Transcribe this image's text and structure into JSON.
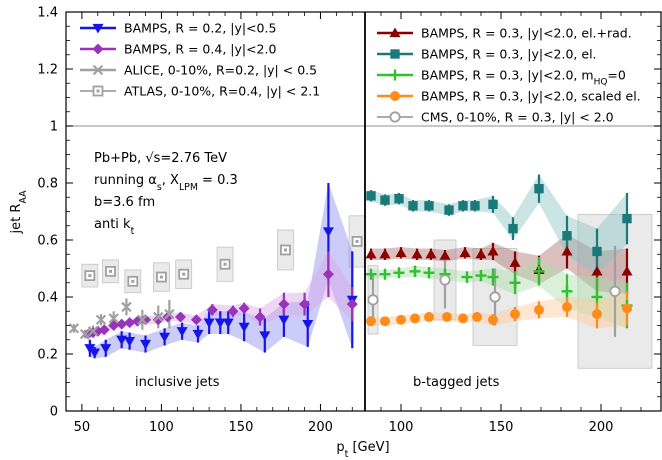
{
  "chart_data": [
    {
      "panel": "left",
      "type": "scatter",
      "annotation_label": "inclusive jets",
      "xlim": [
        40,
        228
      ],
      "ylim": [
        0,
        1.4
      ],
      "xticks": [
        50,
        100,
        150,
        200
      ],
      "yticks": [
        0,
        0.2,
        0.4,
        0.6,
        0.8,
        1,
        1.2,
        1.4
      ],
      "reference_line": 1,
      "annotations": [
        "Pb+Pb, √s=2.76 TeV",
        "running α_s, X_LPM = 0.3",
        "b=3.6 fm",
        "anti k_t"
      ],
      "series": [
        {
          "name": "BAMPS, R = 0.2, |y|<0.5",
          "marker": "triangle-down",
          "color": "#1515e8",
          "band_color": "#8f8ff0",
          "x": [
            55,
            58,
            65,
            75,
            80,
            90,
            102,
            113,
            123,
            130,
            137,
            142,
            152,
            165,
            177,
            192,
            205,
            220
          ],
          "y": [
            0.22,
            0.205,
            0.22,
            0.25,
            0.245,
            0.235,
            0.26,
            0.28,
            0.27,
            0.31,
            0.31,
            0.31,
            0.295,
            0.265,
            0.32,
            0.305,
            0.63,
            0.39
          ],
          "err": [
            0.03,
            0.02,
            0.03,
            0.03,
            0.03,
            0.03,
            0.03,
            0.03,
            0.03,
            0.04,
            0.04,
            0.04,
            0.05,
            0.06,
            0.06,
            0.08,
            0.17,
            0.17
          ]
        },
        {
          "name": "BAMPS, R = 0.4, |y|<2.0",
          "marker": "diamond",
          "color": "#9933bb",
          "band_color": "#d9a6e8",
          "x": [
            54,
            57,
            60,
            64,
            70,
            75,
            80,
            85,
            90,
            98,
            104,
            112,
            122,
            132,
            145,
            152,
            162,
            177,
            190,
            205,
            220
          ],
          "y": [
            0.27,
            0.275,
            0.28,
            0.285,
            0.3,
            0.305,
            0.31,
            0.315,
            0.32,
            0.32,
            0.33,
            0.33,
            0.32,
            0.355,
            0.35,
            0.36,
            0.33,
            0.375,
            0.375,
            0.48,
            0.375
          ],
          "err": [
            0.01,
            0.01,
            0.01,
            0.01,
            0.01,
            0.01,
            0.01,
            0.015,
            0.015,
            0.015,
            0.015,
            0.015,
            0.015,
            0.02,
            0.02,
            0.02,
            0.03,
            0.04,
            0.04,
            0.08,
            0.06
          ]
        },
        {
          "name": "ALICE, 0-10%, R=0.2, |y| < 0.5",
          "marker": "cross",
          "color": "#a0a0a0",
          "x": [
            45,
            52,
            57,
            62,
            70,
            78,
            88,
            98,
            105
          ],
          "y": [
            0.29,
            0.27,
            0.28,
            0.32,
            0.325,
            0.365,
            0.32,
            0.33,
            0.34
          ],
          "err": [
            0.015,
            0.015,
            0.02,
            0.02,
            0.025,
            0.03,
            0.035,
            0.04,
            0.05
          ]
        },
        {
          "name": "ATLAS, 0-10%, R=0.4, |y| < 2.1",
          "marker": "open-square",
          "color": "#a0a0a0",
          "x": [
            55,
            68,
            82,
            100,
            114,
            140,
            178,
            223
          ],
          "y": [
            0.475,
            0.49,
            0.455,
            0.47,
            0.48,
            0.515,
            0.565,
            0.595
          ],
          "sys": [
            0.04,
            0.04,
            0.04,
            0.05,
            0.05,
            0.06,
            0.07,
            0.09
          ]
        }
      ]
    },
    {
      "panel": "right",
      "type": "scatter",
      "annotation_label": "b-tagged jets",
      "xlim": [
        82,
        230
      ],
      "ylim": [
        0,
        1.4
      ],
      "xticks": [
        100,
        150,
        200
      ],
      "yticks": [
        0,
        0.2,
        0.4,
        0.6,
        0.8,
        1,
        1.2,
        1.4
      ],
      "reference_line": 1,
      "series": [
        {
          "name": "BAMPS, R = 0.3, |y|<2.0, el.+rad.",
          "marker": "triangle-up",
          "color": "#8a0000",
          "band_color": "#b27070",
          "x": [
            85,
            92,
            100,
            108,
            115,
            122,
            132,
            140,
            146,
            157,
            169,
            183,
            198,
            213
          ],
          "y": [
            0.55,
            0.55,
            0.555,
            0.55,
            0.55,
            0.545,
            0.555,
            0.55,
            0.56,
            0.52,
            0.495,
            0.56,
            0.49,
            0.49
          ],
          "err": [
            0.02,
            0.02,
            0.02,
            0.02,
            0.02,
            0.02,
            0.02,
            0.02,
            0.03,
            0.04,
            0.05,
            0.06,
            0.07,
            0.08
          ]
        },
        {
          "name": "BAMPS, R = 0.3, |y|<2.0, el.",
          "marker": "square",
          "color": "#1a7a7a",
          "band_color": "#8cc4c4",
          "x": [
            85,
            92,
            99,
            106,
            114,
            124,
            131,
            137,
            146,
            156,
            169,
            183,
            198,
            213
          ],
          "y": [
            0.755,
            0.74,
            0.745,
            0.72,
            0.72,
            0.705,
            0.72,
            0.72,
            0.725,
            0.64,
            0.78,
            0.615,
            0.56,
            0.675
          ],
          "err": [
            0.02,
            0.02,
            0.02,
            0.02,
            0.02,
            0.02,
            0.02,
            0.02,
            0.03,
            0.04,
            0.05,
            0.07,
            0.08,
            0.09
          ]
        },
        {
          "name": "BAMPS, R = 0.3, |y|<2.0, m_HQ=0",
          "marker": "plus",
          "color": "#30c030",
          "band_color": "#a8e0a8",
          "x": [
            85,
            92,
            99,
            107,
            114,
            122,
            133,
            140,
            146,
            157,
            169,
            183,
            198,
            213
          ],
          "y": [
            0.48,
            0.48,
            0.485,
            0.49,
            0.485,
            0.48,
            0.47,
            0.475,
            0.47,
            0.45,
            0.49,
            0.42,
            0.4,
            0.37
          ],
          "err": [
            0.015,
            0.015,
            0.015,
            0.02,
            0.02,
            0.02,
            0.02,
            0.02,
            0.03,
            0.04,
            0.05,
            0.06,
            0.07,
            0.08
          ]
        },
        {
          "name": "BAMPS, R = 0.3, |y|<2.0, scaled el.",
          "marker": "circle",
          "color": "#ff8c1a",
          "band_color": "#ffc999",
          "x": [
            85,
            92,
            100,
            107,
            114,
            123,
            131,
            138,
            146,
            157,
            169,
            183,
            198,
            213
          ],
          "y": [
            0.315,
            0.315,
            0.32,
            0.325,
            0.33,
            0.33,
            0.325,
            0.33,
            0.32,
            0.34,
            0.355,
            0.365,
            0.34,
            0.36
          ],
          "err": [
            0.015,
            0.015,
            0.015,
            0.015,
            0.015,
            0.015,
            0.015,
            0.015,
            0.02,
            0.025,
            0.03,
            0.035,
            0.05,
            0.06
          ]
        },
        {
          "name": "CMS, 0-10%, R = 0.3, |y| < 2.0",
          "marker": "open-circle",
          "color": "#a0a0a0",
          "x": [
            86,
            122,
            147,
            207
          ],
          "y": [
            0.39,
            0.46,
            0.4,
            0.42
          ],
          "err": [
            0.09,
            0.1,
            0.1,
            0.16
          ],
          "sys": [
            0.12,
            0.14,
            0.17,
            0.27
          ],
          "sys_halfwidth": [
            5,
            11,
            22,
            37
          ]
        }
      ]
    }
  ],
  "axes": {
    "xlabel": "p_t [GeV]",
    "ylabel": "jet R_AA"
  }
}
